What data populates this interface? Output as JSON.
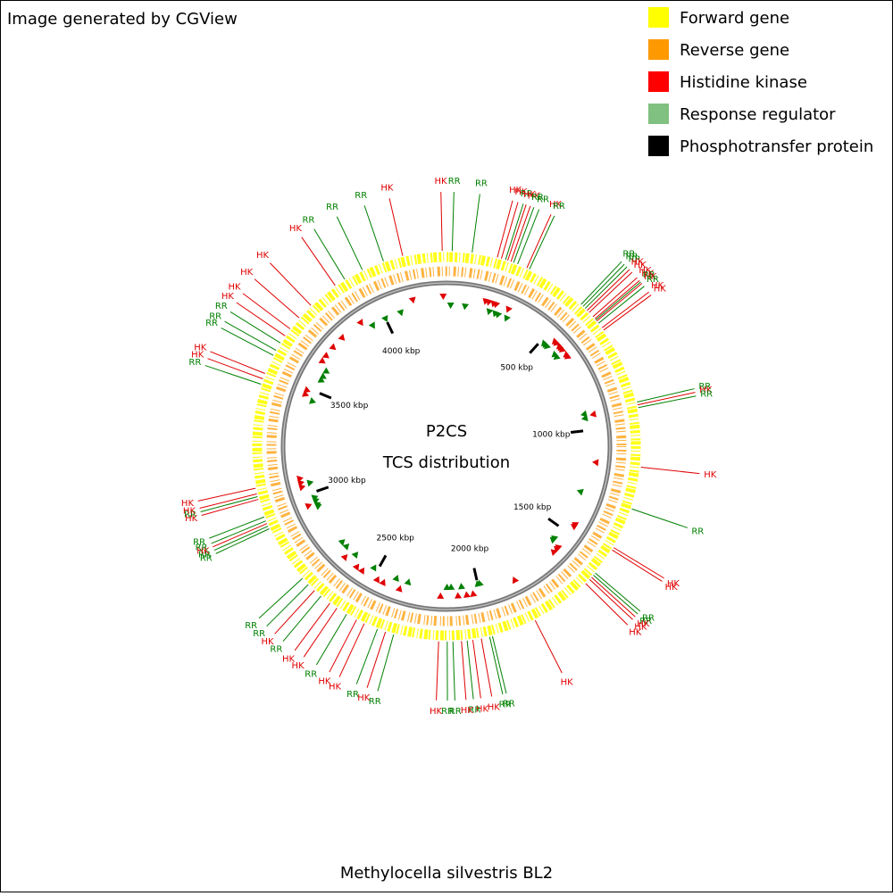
{
  "header": "Image generated by CGView",
  "legend": [
    {
      "name": "Forward gene",
      "color": "#ffff00"
    },
    {
      "name": "Reverse gene",
      "color": "#ff9900"
    },
    {
      "name": "Histidine kinase",
      "color": "#ff0000"
    },
    {
      "name": "Response regulator",
      "color": "#80c080"
    },
    {
      "name": "Phosphotransfer protein",
      "color": "#000000"
    }
  ],
  "title": "P2CS",
  "subtitle": "TCS distribution",
  "caption": "Methylocella silvestris BL2",
  "genome": {
    "xlim": [
      0,
      4305
    ],
    "ticks": [
      {
        "value": 500,
        "label": "500 kbp"
      },
      {
        "value": 1000,
        "label": "1000 kbp"
      },
      {
        "value": 1500,
        "label": "1500 kbp"
      },
      {
        "value": 2000,
        "label": "2000 kbp"
      },
      {
        "value": 2500,
        "label": "2500 kbp"
      },
      {
        "value": 3000,
        "label": "3000 kbp"
      },
      {
        "value": 3500,
        "label": "3500 kbp"
      },
      {
        "value": 4000,
        "label": "4000 kbp"
      }
    ]
  },
  "feature_styles": {
    "HK": {
      "color": "#e00000"
    },
    "RR": {
      "color": "#008000"
    }
  },
  "features": [
    {
      "label": "RR",
      "position": 20
    },
    {
      "label": "RR",
      "position": 90
    },
    {
      "label": "HK",
      "position": 180
    },
    {
      "label": "HK",
      "position": 195
    },
    {
      "label": "RR",
      "position": 210
    },
    {
      "label": "HK",
      "position": 218
    },
    {
      "label": "HK",
      "position": 230
    },
    {
      "label": "RR",
      "position": 240
    },
    {
      "label": "RR",
      "position": 255
    },
    {
      "label": "HK",
      "position": 290
    },
    {
      "label": "RR",
      "position": 300
    },
    {
      "label": "RR",
      "position": 520
    },
    {
      "label": "RR",
      "position": 530
    },
    {
      "label": "RR",
      "position": 540
    },
    {
      "label": "HK",
      "position": 550
    },
    {
      "label": "HK",
      "position": 560
    },
    {
      "label": "HK",
      "position": 580
    },
    {
      "label": "HK",
      "position": 590
    },
    {
      "label": "RR",
      "position": 595
    },
    {
      "label": "HK",
      "position": 600
    },
    {
      "label": "RR",
      "position": 610
    },
    {
      "label": "HK",
      "position": 630
    },
    {
      "label": "HK",
      "position": 640
    },
    {
      "label": "RR",
      "position": 920
    },
    {
      "label": "HK",
      "position": 930
    },
    {
      "label": "RR",
      "position": 940
    },
    {
      "label": "HK",
      "position": 1150
    },
    {
      "label": "RR",
      "position": 1300
    },
    {
      "label": "HK",
      "position": 1450
    },
    {
      "label": "HK",
      "position": 1460
    },
    {
      "label": "RR",
      "position": 1560
    },
    {
      "label": "RR",
      "position": 1570
    },
    {
      "label": "HK",
      "position": 1580
    },
    {
      "label": "HK",
      "position": 1590
    },
    {
      "label": "HK",
      "position": 1610
    },
    {
      "label": "HK",
      "position": 1830
    },
    {
      "label": "RR",
      "position": 1990
    },
    {
      "label": "RR",
      "position": 2000
    },
    {
      "label": "HK",
      "position": 2030
    },
    {
      "label": "HK",
      "position": 2060
    },
    {
      "label": "RR",
      "position": 2080
    },
    {
      "label": "HK",
      "position": 2100
    },
    {
      "label": "RR",
      "position": 2130
    },
    {
      "label": "RR",
      "position": 2150
    },
    {
      "label": "HK",
      "position": 2180
    },
    {
      "label": "RR",
      "position": 2340
    },
    {
      "label": "HK",
      "position": 2370
    },
    {
      "label": "RR",
      "position": 2400
    },
    {
      "label": "HK",
      "position": 2450
    },
    {
      "label": "HK",
      "position": 2480
    },
    {
      "label": "RR",
      "position": 2520
    },
    {
      "label": "HK",
      "position": 2560
    },
    {
      "label": "HK",
      "position": 2590
    },
    {
      "label": "RR",
      "position": 2630
    },
    {
      "label": "HK",
      "position": 2660
    },
    {
      "label": "RR",
      "position": 2690
    },
    {
      "label": "RR",
      "position": 2720
    },
    {
      "label": "RR",
      "position": 2930
    },
    {
      "label": "RR",
      "position": 2940
    },
    {
      "label": "HK",
      "position": 2950
    },
    {
      "label": "RR",
      "position": 2960
    },
    {
      "label": "RR",
      "position": 2975
    },
    {
      "label": "HK",
      "position": 3040
    },
    {
      "label": "RR",
      "position": 3050
    },
    {
      "label": "HK",
      "position": 3060
    },
    {
      "label": "HK",
      "position": 3080
    },
    {
      "label": "RR",
      "position": 3450
    },
    {
      "label": "HK",
      "position": 3470
    },
    {
      "label": "HK",
      "position": 3490
    },
    {
      "label": "RR",
      "position": 3560
    },
    {
      "label": "RR",
      "position": 3580
    },
    {
      "label": "RR",
      "position": 3610
    },
    {
      "label": "HK",
      "position": 3640
    },
    {
      "label": "HK",
      "position": 3670
    },
    {
      "label": "HK",
      "position": 3720
    },
    {
      "label": "HK",
      "position": 3780
    },
    {
      "label": "HK",
      "position": 3890
    },
    {
      "label": "RR",
      "position": 3930
    },
    {
      "label": "RR",
      "position": 4000
    },
    {
      "label": "RR",
      "position": 4080
    },
    {
      "label": "HK",
      "position": 4150
    },
    {
      "label": "HK",
      "position": 4290
    }
  ]
}
